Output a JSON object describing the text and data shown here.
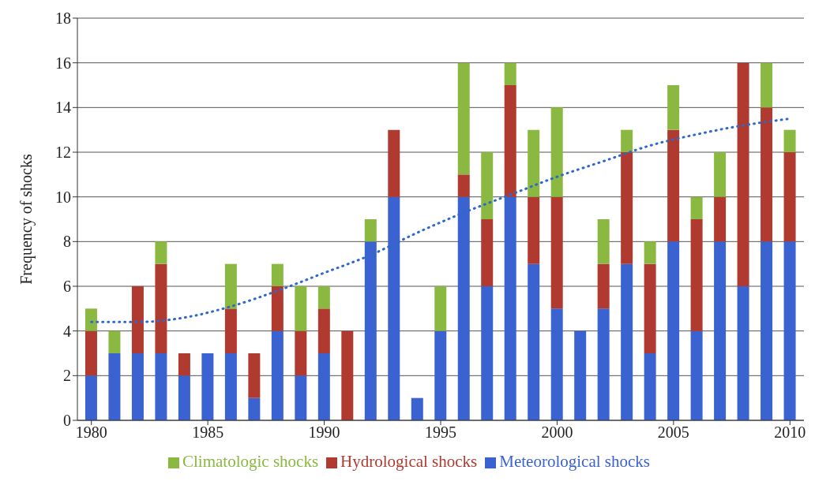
{
  "chart_data": {
    "type": "bar",
    "stacked": true,
    "ylabel": "Frequency of shocks",
    "x": [
      1980,
      1981,
      1982,
      1983,
      1984,
      1985,
      1986,
      1987,
      1988,
      1989,
      1990,
      1991,
      1992,
      1993,
      1994,
      1995,
      1996,
      1997,
      1998,
      1999,
      2000,
      2001,
      2002,
      2003,
      2004,
      2005,
      2006,
      2007,
      2008,
      2009,
      2010
    ],
    "series": [
      {
        "name": "Meteorological shocks",
        "color": "#3a62d0",
        "values": [
          2,
          3,
          3,
          3,
          2,
          3,
          3,
          1,
          4,
          2,
          3,
          0,
          8,
          10,
          1,
          4,
          10,
          6,
          10,
          7,
          5,
          4,
          5,
          7,
          3,
          8,
          4,
          8,
          6,
          8,
          8
        ]
      },
      {
        "name": "Hydrological shocks",
        "color": "#b03a30",
        "values": [
          2,
          0,
          3,
          4,
          1,
          0,
          2,
          2,
          2,
          2,
          2,
          4,
          0,
          3,
          0,
          0,
          1,
          3,
          5,
          3,
          5,
          0,
          2,
          5,
          4,
          5,
          5,
          2,
          10,
          6,
          4
        ]
      },
      {
        "name": "Climatologic shocks",
        "color": "#8ab840",
        "values": [
          1,
          1,
          0,
          1,
          0,
          0,
          2,
          0,
          1,
          2,
          1,
          0,
          1,
          0,
          0,
          2,
          5,
          3,
          1,
          3,
          4,
          0,
          2,
          1,
          1,
          2,
          1,
          2,
          0,
          2,
          1
        ]
      },
      {
        "type": "line",
        "color": "#2e68c8",
        "line_style": "dotted",
        "marker": "none",
        "x": [
          1980,
          1982,
          1984,
          1986,
          1988,
          1990,
          1992,
          1994,
          1996,
          1998,
          2000,
          2002,
          2004,
          2006,
          2008,
          2010
        ],
        "values": [
          4.4,
          4.4,
          4.6,
          5.1,
          5.8,
          6.6,
          7.4,
          8.4,
          9.3,
          10.1,
          10.9,
          11.6,
          12.3,
          12.8,
          13.2,
          13.5
        ]
      }
    ],
    "xlim": [
      1979.4,
      2010.6
    ],
    "xticks": [
      1980,
      1985,
      1990,
      1995,
      2000,
      2005,
      2010
    ],
    "ylim": [
      0,
      18
    ],
    "yticks": [
      0,
      2,
      4,
      6,
      8,
      10,
      12,
      14,
      16,
      18
    ],
    "grid": "y",
    "legend": "bottom"
  }
}
